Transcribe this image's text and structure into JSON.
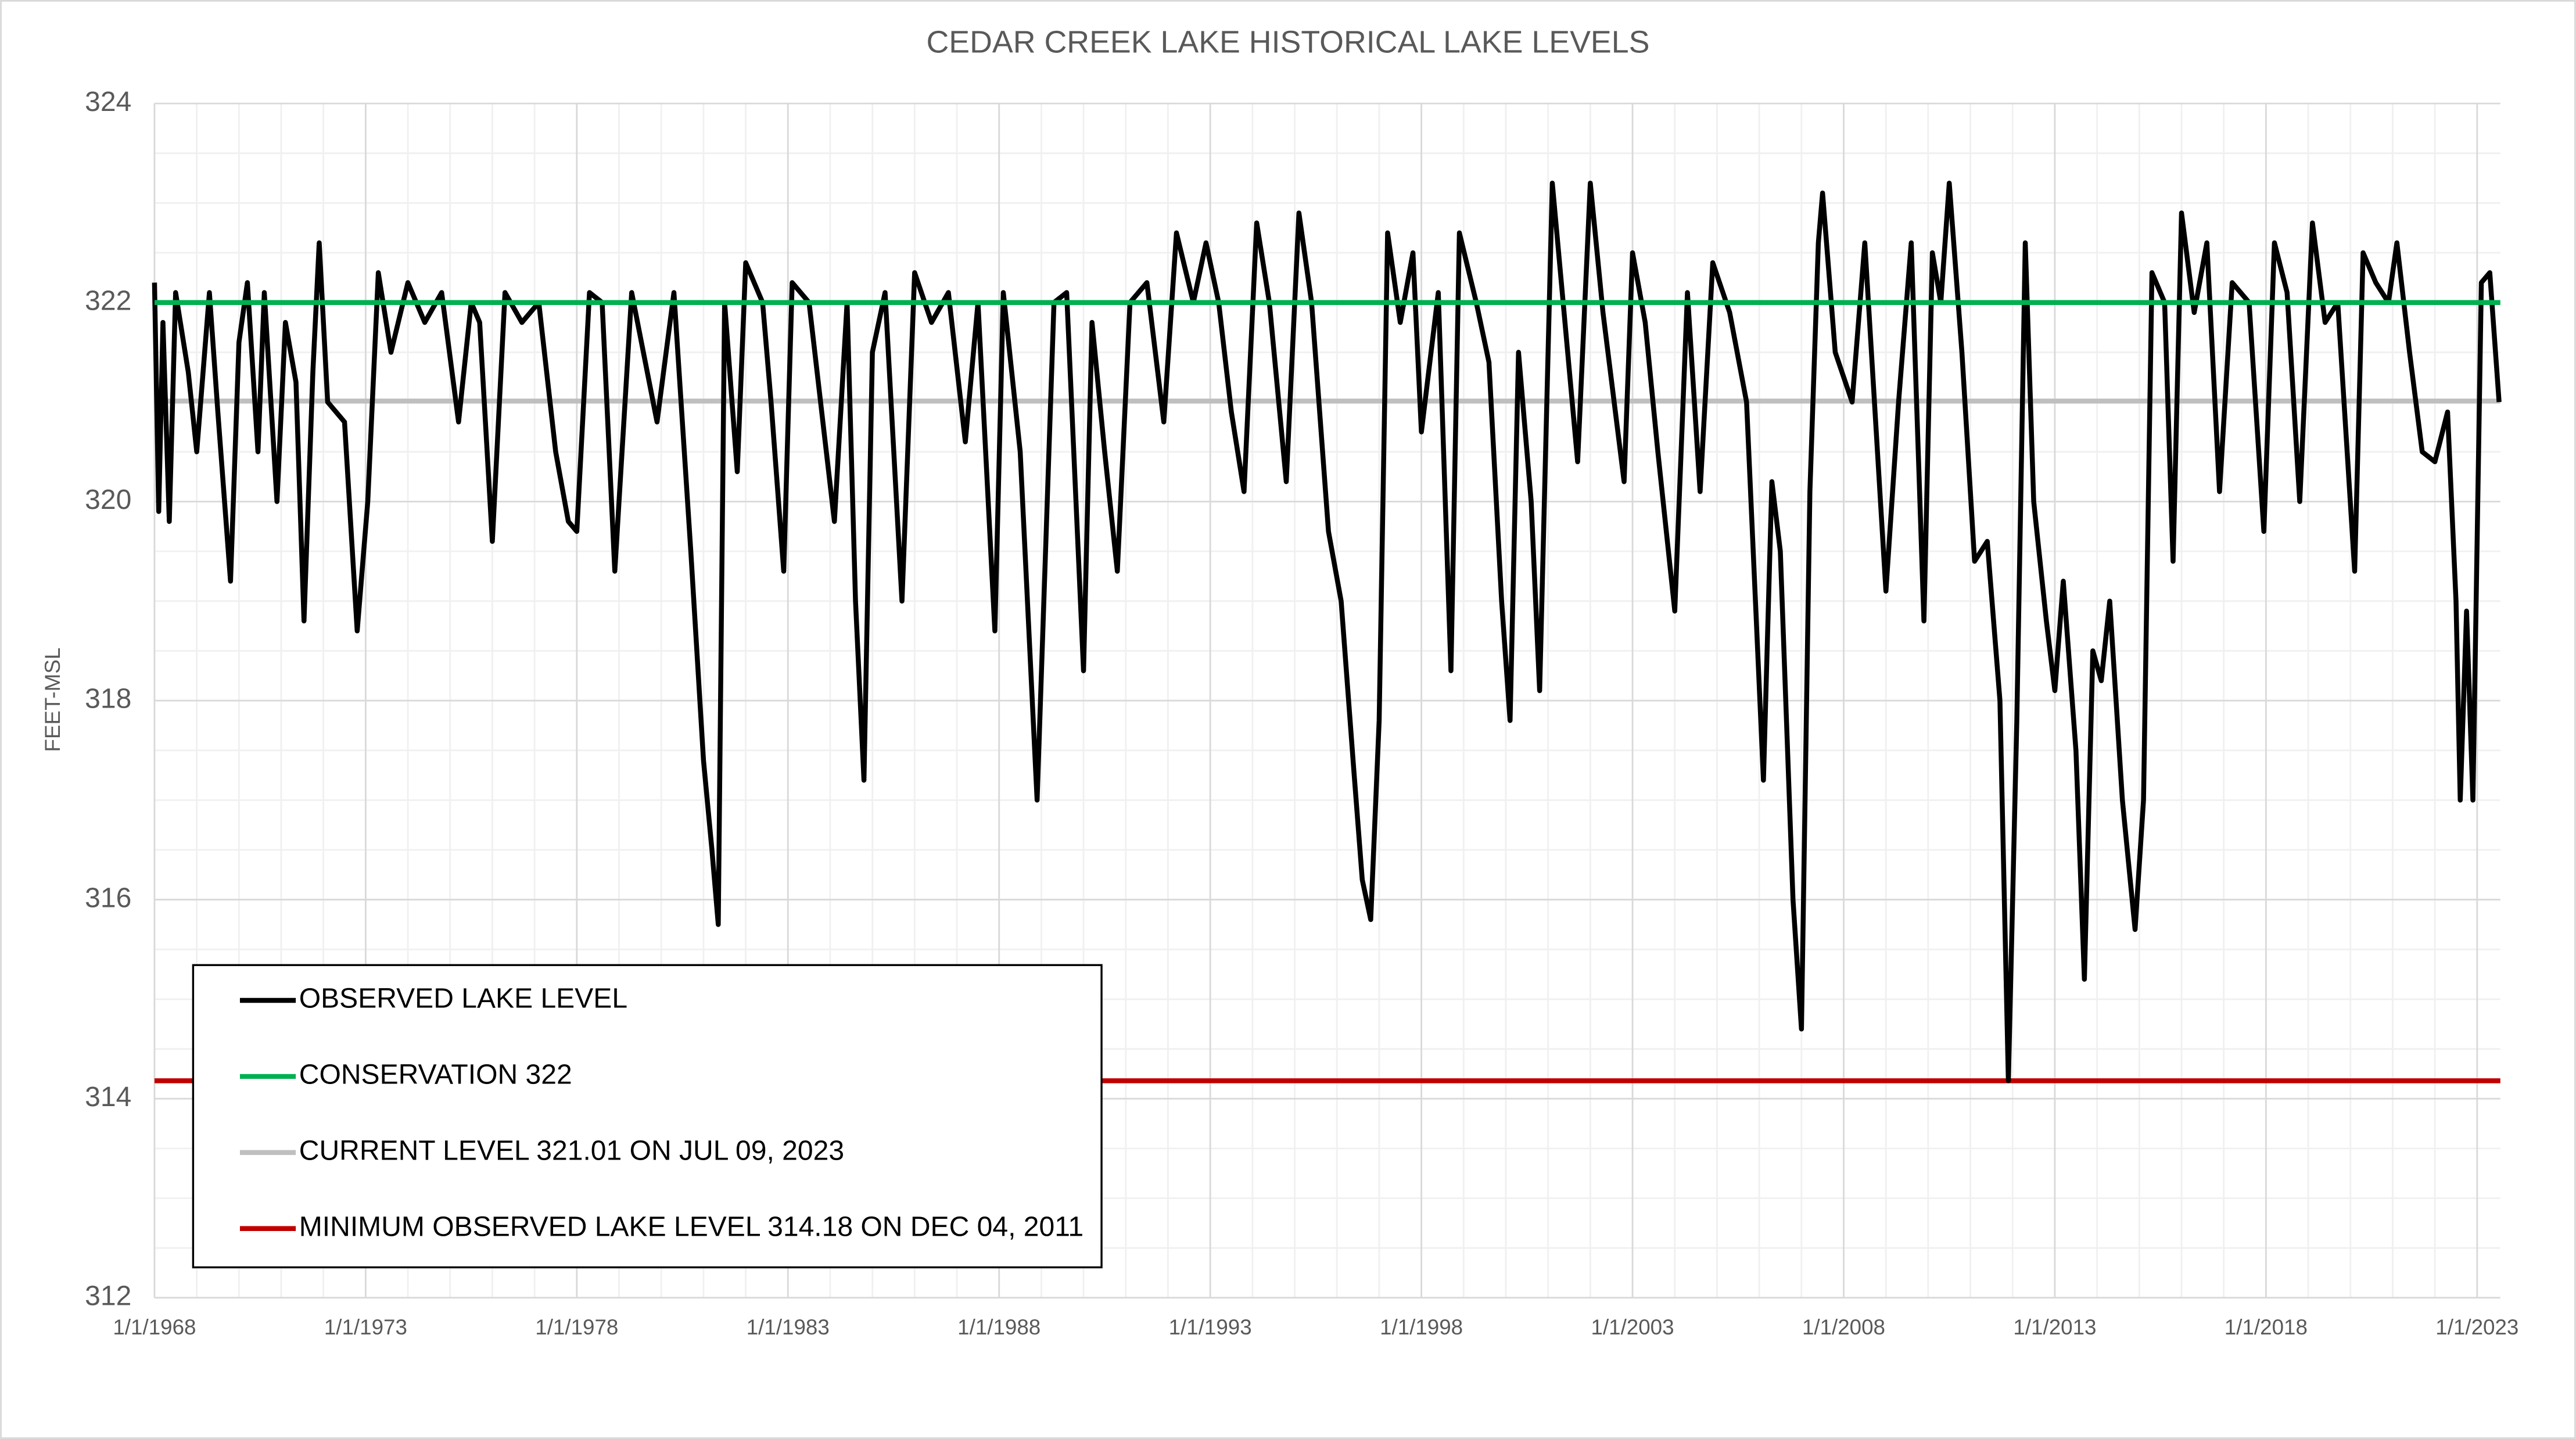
{
  "chart_data": {
    "type": "line",
    "title": "CEDAR CREEK LAKE HISTORICAL LAKE LEVELS",
    "y_label": "FEET-MSL",
    "xlim": [
      1968,
      2023.55
    ],
    "ylim": [
      312,
      324
    ],
    "xticks": [
      {
        "value": 1968,
        "label": "1/1/1968"
      },
      {
        "value": 1973,
        "label": "1/1/1973"
      },
      {
        "value": 1978,
        "label": "1/1/1978"
      },
      {
        "value": 1983,
        "label": "1/1/1983"
      },
      {
        "value": 1988,
        "label": "1/1/1988"
      },
      {
        "value": 1993,
        "label": "1/1/1993"
      },
      {
        "value": 1998,
        "label": "1/1/1998"
      },
      {
        "value": 2003,
        "label": "1/1/2003"
      },
      {
        "value": 2008,
        "label": "1/1/2008"
      },
      {
        "value": 2013,
        "label": "1/1/2013"
      },
      {
        "value": 2018,
        "label": "1/1/2018"
      },
      {
        "value": 2023,
        "label": "1/1/2023"
      }
    ],
    "yticks": [
      312,
      314,
      316,
      318,
      320,
      322,
      324
    ],
    "grid": true,
    "legend": "lower left",
    "series": [
      {
        "name": "OBSERVED LAKE LEVEL",
        "color": "#000000",
        "x": [
          1968.0,
          1968.1,
          1968.2,
          1968.35,
          1968.5,
          1968.8,
          1969.0,
          1969.3,
          1969.5,
          1969.8,
          1970.0,
          1970.2,
          1970.45,
          1970.6,
          1970.9,
          1971.1,
          1971.35,
          1971.54,
          1971.75,
          1971.9,
          1972.1,
          1972.5,
          1972.8,
          1973.05,
          1973.3,
          1973.6,
          1974.0,
          1974.4,
          1974.8,
          1975.2,
          1975.5,
          1975.7,
          1976.0,
          1976.3,
          1976.7,
          1977.1,
          1977.5,
          1977.8,
          1978.0,
          1978.3,
          1978.6,
          1978.9,
          1979.3,
          1979.9,
          1980.3,
          1980.7,
          1981.0,
          1981.2,
          1981.35,
          1981.5,
          1981.8,
          1982.0,
          1982.4,
          1982.6,
          1982.9,
          1983.1,
          1983.5,
          1984.1,
          1984.4,
          1984.6,
          1984.8,
          1985.0,
          1985.3,
          1985.7,
          1986.0,
          1986.4,
          1986.8,
          1987.2,
          1987.5,
          1987.9,
          1988.1,
          1988.5,
          1988.9,
          1989.1,
          1989.3,
          1989.6,
          1990.0,
          1990.2,
          1990.5,
          1990.8,
          1991.1,
          1991.5,
          1991.9,
          1992.2,
          1992.6,
          1992.9,
          1993.2,
          1993.5,
          1993.8,
          1994.1,
          1994.4,
          1994.8,
          1995.1,
          1995.4,
          1995.8,
          1996.1,
          1996.4,
          1996.6,
          1996.8,
          1997.0,
          1997.2,
          1997.5,
          1997.8,
          1998.0,
          1998.4,
          1998.7,
          1998.9,
          1999.3,
          1999.6,
          1999.9,
          2000.1,
          2000.3,
          2000.6,
          2000.8,
          2001.1,
          2001.4,
          2001.7,
          2002.0,
          2002.3,
          2002.8,
          2003.0,
          2003.3,
          2003.6,
          2004.0,
          2004.3,
          2004.6,
          2004.9,
          2005.3,
          2005.7,
          2006.1,
          2006.3,
          2006.5,
          2006.8,
          2007.0,
          2007.2,
          2007.4,
          2007.5,
          2007.8,
          2008.2,
          2008.5,
          2008.8,
          2009.0,
          2009.3,
          2009.6,
          2009.9,
          2010.1,
          2010.3,
          2010.5,
          2010.8,
          2011.1,
          2011.4,
          2011.7,
          2011.9,
          2012.1,
          2012.3,
          2012.5,
          2012.8,
          2013.0,
          2013.2,
          2013.5,
          2013.7,
          2013.9,
          2014.1,
          2014.3,
          2014.6,
          2014.9,
          2015.1,
          2015.3,
          2015.6,
          2015.8,
          2016.0,
          2016.3,
          2016.6,
          2016.9,
          2017.2,
          2017.6,
          2017.95,
          2018.2,
          2018.5,
          2018.8,
          2019.1,
          2019.4,
          2019.7,
          2020.1,
          2020.3,
          2020.6,
          2020.9,
          2021.1,
          2021.4,
          2021.7,
          2022.0,
          2022.3,
          2022.5,
          2022.6,
          2022.75,
          2022.9,
          2023.1,
          2023.3,
          2023.52
        ],
        "values": [
          322.2,
          319.9,
          321.8,
          319.8,
          322.1,
          321.3,
          320.5,
          322.1,
          320.9,
          319.2,
          321.6,
          322.2,
          320.5,
          322.1,
          320.0,
          321.8,
          321.2,
          318.8,
          321.3,
          322.6,
          321.0,
          320.8,
          318.7,
          320.0,
          322.3,
          321.5,
          322.2,
          321.8,
          322.1,
          320.8,
          322.0,
          321.8,
          319.6,
          322.1,
          321.8,
          322.0,
          320.5,
          319.8,
          319.7,
          322.1,
          322.0,
          319.3,
          322.1,
          320.8,
          322.1,
          319.5,
          317.4,
          316.5,
          315.75,
          322.0,
          320.3,
          322.4,
          322.0,
          321.0,
          319.3,
          322.2,
          322.0,
          319.8,
          322.0,
          319.0,
          317.2,
          321.5,
          322.1,
          319.0,
          322.3,
          321.8,
          322.1,
          320.6,
          322.0,
          318.7,
          322.1,
          320.5,
          317.0,
          319.5,
          322.0,
          322.1,
          318.3,
          321.8,
          320.5,
          319.3,
          322.0,
          322.2,
          320.8,
          322.7,
          322.0,
          322.6,
          322.0,
          320.9,
          320.1,
          322.8,
          322.0,
          320.2,
          322.9,
          322.0,
          319.7,
          319.0,
          317.3,
          316.2,
          315.8,
          317.8,
          322.7,
          321.8,
          322.5,
          320.7,
          322.1,
          318.3,
          322.7,
          322.0,
          321.4,
          319.0,
          317.8,
          321.5,
          320.0,
          318.1,
          323.2,
          321.8,
          320.4,
          323.2,
          321.9,
          320.2,
          322.5,
          321.8,
          320.5,
          318.9,
          322.1,
          320.1,
          322.4,
          321.9,
          321.0,
          317.2,
          320.2,
          319.5,
          316.0,
          314.7,
          320.1,
          322.6,
          323.1,
          321.5,
          321.0,
          322.6,
          320.5,
          319.1,
          321.0,
          322.6,
          318.8,
          322.5,
          322.0,
          323.2,
          321.5,
          319.4,
          319.6,
          318.0,
          314.18,
          317.8,
          322.6,
          320.0,
          318.8,
          318.1,
          319.2,
          317.5,
          315.2,
          318.5,
          318.2,
          319.0,
          317.0,
          315.7,
          317.0,
          322.3,
          322.0,
          319.4,
          322.9,
          321.9,
          322.6,
          320.1,
          322.2,
          322.0,
          319.7,
          322.6,
          322.1,
          320.0,
          322.8,
          321.8,
          322.0,
          319.3,
          322.5,
          322.2,
          322.0,
          322.6,
          321.5,
          320.5,
          320.4,
          320.9,
          319.0,
          317.0,
          318.9,
          317.0,
          322.2,
          322.3,
          321.0
        ]
      },
      {
        "name": "CONSERVATION 322",
        "color": "#00b050",
        "x": [
          1968,
          2023.55
        ],
        "values": [
          322,
          322
        ]
      },
      {
        "name": "CURRENT LEVEL 321.01 ON JUL 09, 2023",
        "color": "#bfbfbf",
        "x": [
          1968,
          2023.55
        ],
        "values": [
          321.01,
          321.01
        ]
      },
      {
        "name": "MINIMUM OBSERVED LAKE LEVEL 314.18 ON DEC 04, 2011",
        "color": "#c00000",
        "x": [
          1968,
          2023.55
        ],
        "values": [
          314.18,
          314.18
        ]
      }
    ]
  }
}
